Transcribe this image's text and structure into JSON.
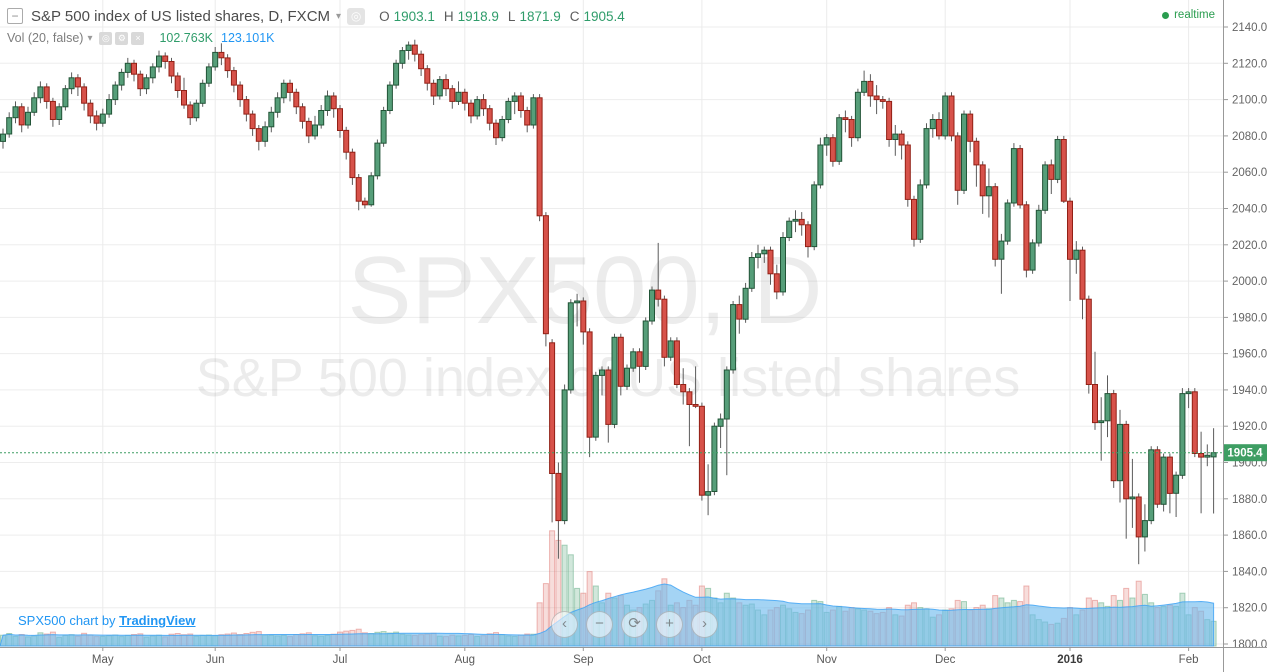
{
  "header": {
    "collapse_glyph": "−",
    "symbol_title": "S&P 500 index of US listed shares, D, FXCM",
    "caret_glyph": "▾",
    "snapshot_glyph": "◎",
    "ohlc": {
      "o_label": "O",
      "o": "1903.1",
      "h_label": "H",
      "h": "1918.9",
      "l_label": "L",
      "l": "1871.9",
      "c_label": "C",
      "c": "1905.4"
    },
    "realtime_label": "realtime"
  },
  "indicator": {
    "label": "Vol (20, false)",
    "icons": [
      {
        "name": "eye-icon",
        "glyph": "◎"
      },
      {
        "name": "settings-gear-icon",
        "glyph": "⚙"
      },
      {
        "name": "delete-x-icon",
        "glyph": "×"
      }
    ],
    "volume_value": "102.763K",
    "volume_ma_value": "123.101K"
  },
  "watermark": {
    "line1": "SPX500, D",
    "line2": "S&P 500 index of US listed shares"
  },
  "attribution": {
    "prefix": "SPX500 chart by ",
    "link": "TradingView"
  },
  "nav": {
    "buttons": [
      {
        "name": "scroll-left-button",
        "glyph": "‹"
      },
      {
        "name": "zoom-out-button",
        "glyph": "−"
      },
      {
        "name": "reset-zoom-button",
        "glyph": "⟳"
      },
      {
        "name": "zoom-in-button",
        "glyph": "+"
      },
      {
        "name": "scroll-right-button",
        "glyph": "›"
      }
    ]
  },
  "colors": {
    "up_fill": "#569E79",
    "up_stroke": "#225437",
    "down_fill": "#D7524A",
    "down_stroke": "#922015",
    "wick": "#5b5b5b",
    "vol_up_fill": "rgba(103,174,137,0.30)",
    "vol_up_stroke": "rgba(103,174,137,0.55)",
    "vol_down_fill": "rgba(222,111,105,0.24)",
    "vol_down_stroke": "rgba(222,111,105,0.48)",
    "ma_fill": "rgba(108,185,237,0.62)",
    "ma_stroke": "rgba(66,165,245,0.85)",
    "tag_green": "#3E9E63",
    "value_green": "#2F9C6A",
    "value_blue": "#2196F3",
    "realtime_green": "#2A9D4F",
    "link_blue": "#2196F3",
    "grid": "#ededed",
    "axis_line": "#999999",
    "axis_text": "#656565"
  },
  "chart_data": {
    "type": "candlestick",
    "symbol": "SPX500",
    "interval": "D",
    "title": "S&P 500 index of US listed shares",
    "price_axis": {
      "min": 1800,
      "max": 2140,
      "step": 20,
      "format_decimals": 1
    },
    "current_price": 1905.4,
    "current_candle": {
      "open": 1903.1,
      "high": 1918.9,
      "low": 1871.9,
      "close": 1905.4
    },
    "volume_unit": "K",
    "legend_position": "top-left",
    "months": [
      {
        "label": "May",
        "bar": 16
      },
      {
        "label": "Jun",
        "bar": 34
      },
      {
        "label": "Jul",
        "bar": 54
      },
      {
        "label": "Aug",
        "bar": 74
      },
      {
        "label": "Sep",
        "bar": 93
      },
      {
        "label": "Oct",
        "bar": 112
      },
      {
        "label": "Nov",
        "bar": 132
      },
      {
        "label": "Dec",
        "bar": 151
      },
      {
        "label": "2016",
        "bar": 171,
        "bold": true
      },
      {
        "label": "Feb",
        "bar": 190
      }
    ],
    "candles_format": [
      "open",
      "high",
      "low",
      "close",
      "volume_k"
    ],
    "candles": [
      [
        2077,
        2084,
        2073,
        2081,
        45
      ],
      [
        2081,
        2093,
        2079,
        2090,
        52
      ],
      [
        2090,
        2099,
        2087,
        2096,
        40
      ],
      [
        2096,
        2098,
        2082,
        2086,
        48
      ],
      [
        2086,
        2096,
        2084,
        2093,
        38
      ],
      [
        2093,
        2104,
        2091,
        2101,
        42
      ],
      [
        2101,
        2110,
        2098,
        2107,
        55
      ],
      [
        2107,
        2109,
        2095,
        2099,
        50
      ],
      [
        2099,
        2101,
        2085,
        2089,
        58
      ],
      [
        2089,
        2098,
        2086,
        2096,
        36
      ],
      [
        2096,
        2108,
        2094,
        2106,
        44
      ],
      [
        2106,
        2115,
        2103,
        2112,
        47
      ],
      [
        2112,
        2114,
        2102,
        2107,
        41
      ],
      [
        2107,
        2109,
        2094,
        2098,
        53
      ],
      [
        2098,
        2100,
        2087,
        2091,
        46
      ],
      [
        2091,
        2094,
        2083,
        2087,
        39
      ],
      [
        2087,
        2095,
        2085,
        2092,
        40
      ],
      [
        2092,
        2103,
        2090,
        2100,
        43
      ],
      [
        2100,
        2110,
        2097,
        2108,
        46
      ],
      [
        2108,
        2117,
        2105,
        2115,
        39
      ],
      [
        2115,
        2123,
        2112,
        2120,
        44
      ],
      [
        2120,
        2122,
        2110,
        2114,
        48
      ],
      [
        2114,
        2116,
        2102,
        2106,
        51
      ],
      [
        2106,
        2114,
        2103,
        2112,
        37
      ],
      [
        2112,
        2120,
        2109,
        2118,
        42
      ],
      [
        2118,
        2127,
        2115,
        2124,
        45
      ],
      [
        2124,
        2126,
        2117,
        2121,
        38
      ],
      [
        2121,
        2123,
        2109,
        2113,
        49
      ],
      [
        2113,
        2115,
        2101,
        2105,
        52
      ],
      [
        2105,
        2112,
        2095,
        2097,
        47
      ],
      [
        2097,
        2099,
        2086,
        2090,
        50
      ],
      [
        2090,
        2100,
        2088,
        2098,
        41
      ],
      [
        2098,
        2111,
        2096,
        2109,
        44
      ],
      [
        2109,
        2120,
        2107,
        2118,
        46
      ],
      [
        2118,
        2129,
        2116,
        2126,
        43
      ],
      [
        2126,
        2131,
        2119,
        2123,
        47
      ],
      [
        2123,
        2125,
        2112,
        2116,
        50
      ],
      [
        2116,
        2118,
        2104,
        2108,
        54
      ],
      [
        2108,
        2110,
        2096,
        2100,
        48
      ],
      [
        2100,
        2102,
        2088,
        2092,
        52
      ],
      [
        2092,
        2094,
        2080,
        2084,
        57
      ],
      [
        2084,
        2086,
        2072,
        2077,
        60
      ],
      [
        2077,
        2088,
        2074,
        2085,
        46
      ],
      [
        2085,
        2096,
        2082,
        2093,
        44
      ],
      [
        2093,
        2104,
        2090,
        2101,
        42
      ],
      [
        2101,
        2111,
        2098,
        2109,
        45
      ],
      [
        2109,
        2111,
        2099,
        2104,
        39
      ],
      [
        2104,
        2106,
        2092,
        2096,
        48
      ],
      [
        2096,
        2098,
        2084,
        2088,
        51
      ],
      [
        2088,
        2090,
        2076,
        2080,
        55
      ],
      [
        2080,
        2091,
        2078,
        2086,
        43
      ],
      [
        2086,
        2097,
        2084,
        2094,
        41
      ],
      [
        2094,
        2105,
        2091,
        2102,
        44
      ],
      [
        2102,
        2104,
        2090,
        2095,
        49
      ],
      [
        2095,
        2097,
        2079,
        2083,
        58
      ],
      [
        2083,
        2085,
        2067,
        2071,
        62
      ],
      [
        2071,
        2073,
        2053,
        2057,
        65
      ],
      [
        2057,
        2059,
        2039,
        2044,
        70
      ],
      [
        2044,
        2046,
        2040,
        2042,
        55
      ],
      [
        2042,
        2060,
        2041,
        2058,
        52
      ],
      [
        2058,
        2078,
        2056,
        2076,
        57
      ],
      [
        2076,
        2096,
        2074,
        2094,
        60
      ],
      [
        2094,
        2110,
        2092,
        2108,
        54
      ],
      [
        2108,
        2122,
        2106,
        2120,
        58
      ],
      [
        2120,
        2129,
        2117,
        2127,
        49
      ],
      [
        2127,
        2132,
        2122,
        2130,
        46
      ],
      [
        2130,
        2133,
        2121,
        2125,
        44
      ],
      [
        2125,
        2127,
        2113,
        2117,
        47
      ],
      [
        2117,
        2119,
        2105,
        2109,
        50
      ],
      [
        2109,
        2111,
        2097,
        2102,
        53
      ],
      [
        2102,
        2113,
        2100,
        2111,
        41
      ],
      [
        2111,
        2114,
        2102,
        2106,
        39
      ],
      [
        2106,
        2108,
        2095,
        2099,
        45
      ],
      [
        2099,
        2110,
        2097,
        2104,
        42
      ],
      [
        2104,
        2106,
        2094,
        2098,
        44
      ],
      [
        2098,
        2100,
        2087,
        2091,
        48
      ],
      [
        2091,
        2102,
        2089,
        2100,
        40
      ],
      [
        2100,
        2103,
        2091,
        2095,
        43
      ],
      [
        2095,
        2097,
        2083,
        2087,
        51
      ],
      [
        2087,
        2089,
        2075,
        2079,
        56
      ],
      [
        2079,
        2091,
        2077,
        2089,
        47
      ],
      [
        2089,
        2101,
        2087,
        2099,
        42
      ],
      [
        2099,
        2104,
        2092,
        2102,
        40
      ],
      [
        2102,
        2104,
        2090,
        2094,
        46
      ],
      [
        2094,
        2096,
        2082,
        2086,
        50
      ],
      [
        2086,
        2103,
        2084,
        2101,
        49
      ],
      [
        2101,
        2103,
        2033,
        2036,
        180
      ],
      [
        2036,
        2038,
        1964,
        1971,
        260
      ],
      [
        1966,
        1968,
        1867,
        1894,
        480
      ],
      [
        1894,
        1900,
        1847,
        1868,
        440
      ],
      [
        1868,
        1943,
        1866,
        1940,
        420
      ],
      [
        1940,
        1990,
        1938,
        1988,
        380
      ],
      [
        1988,
        1993,
        1975,
        1989,
        240
      ],
      [
        1989,
        1991,
        1965,
        1972,
        220
      ],
      [
        1972,
        1974,
        1903,
        1914,
        310
      ],
      [
        1914,
        1950,
        1912,
        1948,
        250
      ],
      [
        1948,
        1953,
        1937,
        1951,
        180
      ],
      [
        1951,
        1953,
        1911,
        1921,
        220
      ],
      [
        1921,
        1971,
        1919,
        1969,
        200
      ],
      [
        1969,
        1971,
        1937,
        1942,
        210
      ],
      [
        1942,
        1954,
        1940,
        1952,
        170
      ],
      [
        1952,
        1963,
        1950,
        1961,
        150
      ],
      [
        1961,
        1963,
        1944,
        1953,
        160
      ],
      [
        1953,
        1980,
        1951,
        1978,
        175
      ],
      [
        1978,
        1997,
        1976,
        1995,
        190
      ],
      [
        1995,
        2021,
        1986,
        1990,
        230
      ],
      [
        1990,
        1992,
        1953,
        1958,
        280
      ],
      [
        1958,
        1969,
        1956,
        1967,
        170
      ],
      [
        1967,
        1969,
        1941,
        1943,
        180
      ],
      [
        1943,
        1952,
        1932,
        1939,
        160
      ],
      [
        1939,
        1941,
        1909,
        1932,
        190
      ],
      [
        1932,
        1953,
        1930,
        1931,
        170
      ],
      [
        1931,
        1933,
        1879,
        1882,
        250
      ],
      [
        1882,
        1899,
        1871,
        1884,
        240
      ],
      [
        1884,
        1922,
        1882,
        1920,
        200
      ],
      [
        1920,
        1927,
        1908,
        1924,
        180
      ],
      [
        1924,
        1953,
        1893,
        1951,
        220
      ],
      [
        1951,
        1989,
        1949,
        1987,
        200
      ],
      [
        1987,
        1992,
        1971,
        1979,
        180
      ],
      [
        1979,
        1999,
        1977,
        1996,
        170
      ],
      [
        1996,
        2016,
        1994,
        2013,
        175
      ],
      [
        2013,
        2020,
        2007,
        2015,
        150
      ],
      [
        2015,
        2019,
        2010,
        2017,
        130
      ],
      [
        2017,
        2019,
        1998,
        2004,
        150
      ],
      [
        2004,
        2009,
        1990,
        1994,
        160
      ],
      [
        1994,
        2027,
        1992,
        2024,
        170
      ],
      [
        2024,
        2035,
        2022,
        2033,
        155
      ],
      [
        2033,
        2039,
        2027,
        2034,
        140
      ],
      [
        2034,
        2038,
        2025,
        2031,
        135
      ],
      [
        2031,
        2033,
        2013,
        2019,
        150
      ],
      [
        2019,
        2055,
        2017,
        2053,
        190
      ],
      [
        2053,
        2079,
        2051,
        2075,
        185
      ],
      [
        2075,
        2081,
        2069,
        2079,
        140
      ],
      [
        2079,
        2081,
        2063,
        2066,
        150
      ],
      [
        2066,
        2092,
        2064,
        2090,
        165
      ],
      [
        2090,
        2094,
        2082,
        2089,
        145
      ],
      [
        2089,
        2091,
        2074,
        2079,
        160
      ],
      [
        2079,
        2106,
        2077,
        2104,
        155
      ],
      [
        2104,
        2116,
        2102,
        2110,
        150
      ],
      [
        2110,
        2114,
        2096,
        2102,
        145
      ],
      [
        2102,
        2108,
        2092,
        2100,
        135
      ],
      [
        2100,
        2102,
        2095,
        2099,
        140
      ],
      [
        2099,
        2101,
        2074,
        2078,
        160
      ],
      [
        2078,
        2086,
        2069,
        2081,
        130
      ],
      [
        2081,
        2083,
        2067,
        2075,
        125
      ],
      [
        2075,
        2077,
        2041,
        2045,
        170
      ],
      [
        2045,
        2047,
        2019,
        2023,
        180
      ],
      [
        2023,
        2056,
        2021,
        2053,
        160
      ],
      [
        2053,
        2087,
        2051,
        2084,
        155
      ],
      [
        2084,
        2092,
        2079,
        2089,
        120
      ],
      [
        2089,
        2093,
        2078,
        2080,
        130
      ],
      [
        2080,
        2104,
        2078,
        2102,
        150
      ],
      [
        2102,
        2104,
        2077,
        2080,
        155
      ],
      [
        2080,
        2082,
        2042,
        2050,
        190
      ],
      [
        2050,
        2094,
        2048,
        2092,
        185
      ],
      [
        2092,
        2094,
        2071,
        2077,
        150
      ],
      [
        2077,
        2079,
        2052,
        2064,
        160
      ],
      [
        2064,
        2066,
        2037,
        2047,
        170
      ],
      [
        2047,
        2062,
        2035,
        2052,
        155
      ],
      [
        2052,
        2054,
        2008,
        2012,
        210
      ],
      [
        2012,
        2026,
        1993,
        2022,
        200
      ],
      [
        2022,
        2045,
        2020,
        2043,
        180
      ],
      [
        2043,
        2076,
        2041,
        2073,
        190
      ],
      [
        2073,
        2075,
        2040,
        2042,
        185
      ],
      [
        2042,
        2044,
        2002,
        2006,
        250
      ],
      [
        2006,
        2023,
        2004,
        2021,
        130
      ],
      [
        2021,
        2042,
        2019,
        2039,
        110
      ],
      [
        2039,
        2066,
        2037,
        2064,
        100
      ],
      [
        2064,
        2067,
        2048,
        2056,
        90
      ],
      [
        2056,
        2080,
        2054,
        2078,
        95
      ],
      [
        2078,
        2080,
        2043,
        2044,
        115
      ],
      [
        2044,
        2046,
        1989,
        2012,
        160
      ],
      [
        2012,
        2022,
        2004,
        2017,
        130
      ],
      [
        2017,
        2019,
        1979,
        1990,
        150
      ],
      [
        1990,
        1992,
        1938,
        1943,
        200
      ],
      [
        1943,
        1961,
        1918,
        1922,
        190
      ],
      [
        1922,
        1936,
        1901,
        1923,
        180
      ],
      [
        1923,
        1948,
        1914,
        1938,
        165
      ],
      [
        1938,
        1940,
        1886,
        1890,
        210
      ],
      [
        1890,
        1929,
        1878,
        1921,
        190
      ],
      [
        1921,
        1923,
        1858,
        1880,
        240
      ],
      [
        1880,
        1902,
        1864,
        1881,
        200
      ],
      [
        1881,
        1883,
        1844,
        1859,
        270
      ],
      [
        1859,
        1877,
        1851,
        1868,
        215
      ],
      [
        1868,
        1909,
        1866,
        1907,
        180
      ],
      [
        1907,
        1909,
        1875,
        1877,
        160
      ],
      [
        1877,
        1905,
        1873,
        1903,
        165
      ],
      [
        1903,
        1905,
        1872,
        1883,
        170
      ],
      [
        1883,
        1895,
        1870,
        1893,
        165
      ],
      [
        1893,
        1941,
        1891,
        1938,
        220
      ],
      [
        1938,
        1941,
        1930,
        1939,
        130
      ],
      [
        1939,
        1941,
        1903,
        1905,
        160
      ],
      [
        1905,
        1917,
        1872,
        1903,
        145
      ],
      [
        1903,
        1910,
        1898,
        1904,
        110
      ],
      [
        1903.1,
        1918.9,
        1871.9,
        1905.4,
        103
      ]
    ]
  }
}
